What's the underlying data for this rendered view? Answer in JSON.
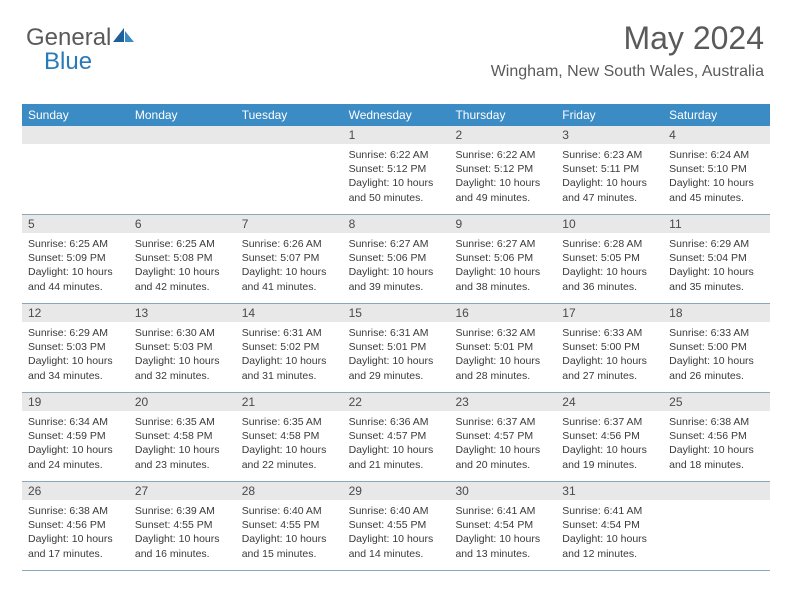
{
  "brand": {
    "part1": "General",
    "part2": "Blue"
  },
  "header": {
    "month": "May 2024",
    "location": "Wingham, New South Wales, Australia"
  },
  "colors": {
    "header_bg": "#3b8bc4",
    "date_band_bg": "#e8e8e8",
    "week_border": "#8aa8bc",
    "text_gray": "#5a5a5a",
    "brand_blue": "#2a7ab8"
  },
  "dayNames": [
    "Sunday",
    "Monday",
    "Tuesday",
    "Wednesday",
    "Thursday",
    "Friday",
    "Saturday"
  ],
  "weeks": [
    [
      {
        "empty": true
      },
      {
        "empty": true
      },
      {
        "empty": true
      },
      {
        "date": "1",
        "sunrise": "6:22 AM",
        "sunset": "5:12 PM",
        "daylight": "10 hours and 50 minutes."
      },
      {
        "date": "2",
        "sunrise": "6:22 AM",
        "sunset": "5:12 PM",
        "daylight": "10 hours and 49 minutes."
      },
      {
        "date": "3",
        "sunrise": "6:23 AM",
        "sunset": "5:11 PM",
        "daylight": "10 hours and 47 minutes."
      },
      {
        "date": "4",
        "sunrise": "6:24 AM",
        "sunset": "5:10 PM",
        "daylight": "10 hours and 45 minutes."
      }
    ],
    [
      {
        "date": "5",
        "sunrise": "6:25 AM",
        "sunset": "5:09 PM",
        "daylight": "10 hours and 44 minutes."
      },
      {
        "date": "6",
        "sunrise": "6:25 AM",
        "sunset": "5:08 PM",
        "daylight": "10 hours and 42 minutes."
      },
      {
        "date": "7",
        "sunrise": "6:26 AM",
        "sunset": "5:07 PM",
        "daylight": "10 hours and 41 minutes."
      },
      {
        "date": "8",
        "sunrise": "6:27 AM",
        "sunset": "5:06 PM",
        "daylight": "10 hours and 39 minutes."
      },
      {
        "date": "9",
        "sunrise": "6:27 AM",
        "sunset": "5:06 PM",
        "daylight": "10 hours and 38 minutes."
      },
      {
        "date": "10",
        "sunrise": "6:28 AM",
        "sunset": "5:05 PM",
        "daylight": "10 hours and 36 minutes."
      },
      {
        "date": "11",
        "sunrise": "6:29 AM",
        "sunset": "5:04 PM",
        "daylight": "10 hours and 35 minutes."
      }
    ],
    [
      {
        "date": "12",
        "sunrise": "6:29 AM",
        "sunset": "5:03 PM",
        "daylight": "10 hours and 34 minutes."
      },
      {
        "date": "13",
        "sunrise": "6:30 AM",
        "sunset": "5:03 PM",
        "daylight": "10 hours and 32 minutes."
      },
      {
        "date": "14",
        "sunrise": "6:31 AM",
        "sunset": "5:02 PM",
        "daylight": "10 hours and 31 minutes."
      },
      {
        "date": "15",
        "sunrise": "6:31 AM",
        "sunset": "5:01 PM",
        "daylight": "10 hours and 29 minutes."
      },
      {
        "date": "16",
        "sunrise": "6:32 AM",
        "sunset": "5:01 PM",
        "daylight": "10 hours and 28 minutes."
      },
      {
        "date": "17",
        "sunrise": "6:33 AM",
        "sunset": "5:00 PM",
        "daylight": "10 hours and 27 minutes."
      },
      {
        "date": "18",
        "sunrise": "6:33 AM",
        "sunset": "5:00 PM",
        "daylight": "10 hours and 26 minutes."
      }
    ],
    [
      {
        "date": "19",
        "sunrise": "6:34 AM",
        "sunset": "4:59 PM",
        "daylight": "10 hours and 24 minutes."
      },
      {
        "date": "20",
        "sunrise": "6:35 AM",
        "sunset": "4:58 PM",
        "daylight": "10 hours and 23 minutes."
      },
      {
        "date": "21",
        "sunrise": "6:35 AM",
        "sunset": "4:58 PM",
        "daylight": "10 hours and 22 minutes."
      },
      {
        "date": "22",
        "sunrise": "6:36 AM",
        "sunset": "4:57 PM",
        "daylight": "10 hours and 21 minutes."
      },
      {
        "date": "23",
        "sunrise": "6:37 AM",
        "sunset": "4:57 PM",
        "daylight": "10 hours and 20 minutes."
      },
      {
        "date": "24",
        "sunrise": "6:37 AM",
        "sunset": "4:56 PM",
        "daylight": "10 hours and 19 minutes."
      },
      {
        "date": "25",
        "sunrise": "6:38 AM",
        "sunset": "4:56 PM",
        "daylight": "10 hours and 18 minutes."
      }
    ],
    [
      {
        "date": "26",
        "sunrise": "6:38 AM",
        "sunset": "4:56 PM",
        "daylight": "10 hours and 17 minutes."
      },
      {
        "date": "27",
        "sunrise": "6:39 AM",
        "sunset": "4:55 PM",
        "daylight": "10 hours and 16 minutes."
      },
      {
        "date": "28",
        "sunrise": "6:40 AM",
        "sunset": "4:55 PM",
        "daylight": "10 hours and 15 minutes."
      },
      {
        "date": "29",
        "sunrise": "6:40 AM",
        "sunset": "4:55 PM",
        "daylight": "10 hours and 14 minutes."
      },
      {
        "date": "30",
        "sunrise": "6:41 AM",
        "sunset": "4:54 PM",
        "daylight": "10 hours and 13 minutes."
      },
      {
        "date": "31",
        "sunrise": "6:41 AM",
        "sunset": "4:54 PM",
        "daylight": "10 hours and 12 minutes."
      },
      {
        "empty": true
      }
    ]
  ],
  "labels": {
    "sunrise": "Sunrise:",
    "sunset": "Sunset:",
    "daylight": "Daylight:"
  }
}
